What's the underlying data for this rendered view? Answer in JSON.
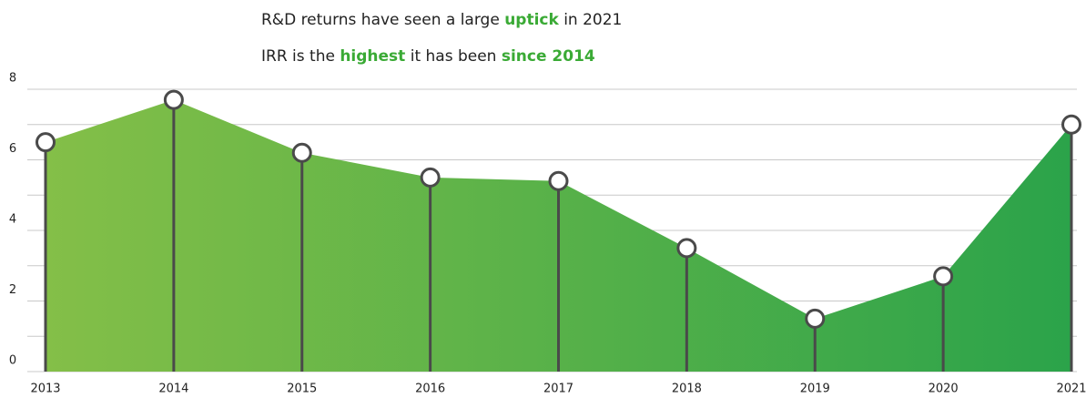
{
  "chart_data": {
    "type": "area",
    "title_lines": [
      [
        {
          "text": "R&D returns have seen a large ",
          "bold": false
        },
        {
          "text": "uptick",
          "bold": true
        },
        {
          "text": " in 2021",
          "bold": false
        }
      ],
      [
        {
          "text": "IRR is the ",
          "bold": false
        },
        {
          "text": "highest",
          "bold": true
        },
        {
          "text": " it has been ",
          "bold": false
        },
        {
          "text": "since 2014",
          "bold": true
        }
      ]
    ],
    "highlight_color": "#3aaa35",
    "categories": [
      "2013",
      "2014",
      "2015",
      "2016",
      "2017",
      "2018",
      "2019",
      "2020",
      "2021"
    ],
    "values": [
      6.5,
      7.7,
      6.2,
      5.5,
      5.4,
      3.5,
      1.5,
      2.7,
      7.0
    ],
    "gradient": [
      "#84bf48",
      "#2ba34a"
    ],
    "ylim": [
      0,
      8
    ],
    "yticks": [
      0,
      2,
      4,
      6,
      8
    ],
    "minor_yticks": [
      1,
      3,
      5,
      7
    ],
    "grid": true
  }
}
